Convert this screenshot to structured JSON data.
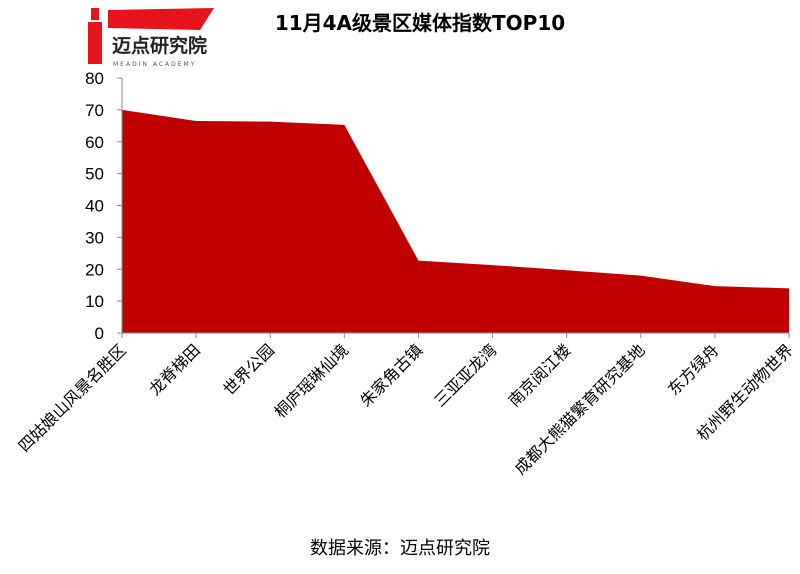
{
  "logo": {
    "name": "迈点研究院",
    "subtitle": "MEADIN ACADEMY"
  },
  "chart_data": {
    "type": "area",
    "title": "11月4A级景区媒体指数TOP10",
    "categories": [
      "四姑娘山风景名胜区",
      "龙脊梯田",
      "世界公园",
      "桐庐瑶琳仙境",
      "朱家角古镇",
      "三亚亚龙湾",
      "南京阅江楼",
      "成都大熊猫繁育研究基地",
      "东方绿舟",
      "杭州野生动物世界"
    ],
    "values": [
      70,
      66.5,
      66.3,
      65.3,
      22.7,
      21.3,
      19.7,
      18.0,
      14.7,
      14.0
    ],
    "color": "#c00000",
    "ylim": [
      0,
      80
    ],
    "yticks": [
      0,
      10,
      20,
      30,
      40,
      50,
      60,
      70,
      80
    ],
    "source": "数据来源：迈点研究院"
  }
}
